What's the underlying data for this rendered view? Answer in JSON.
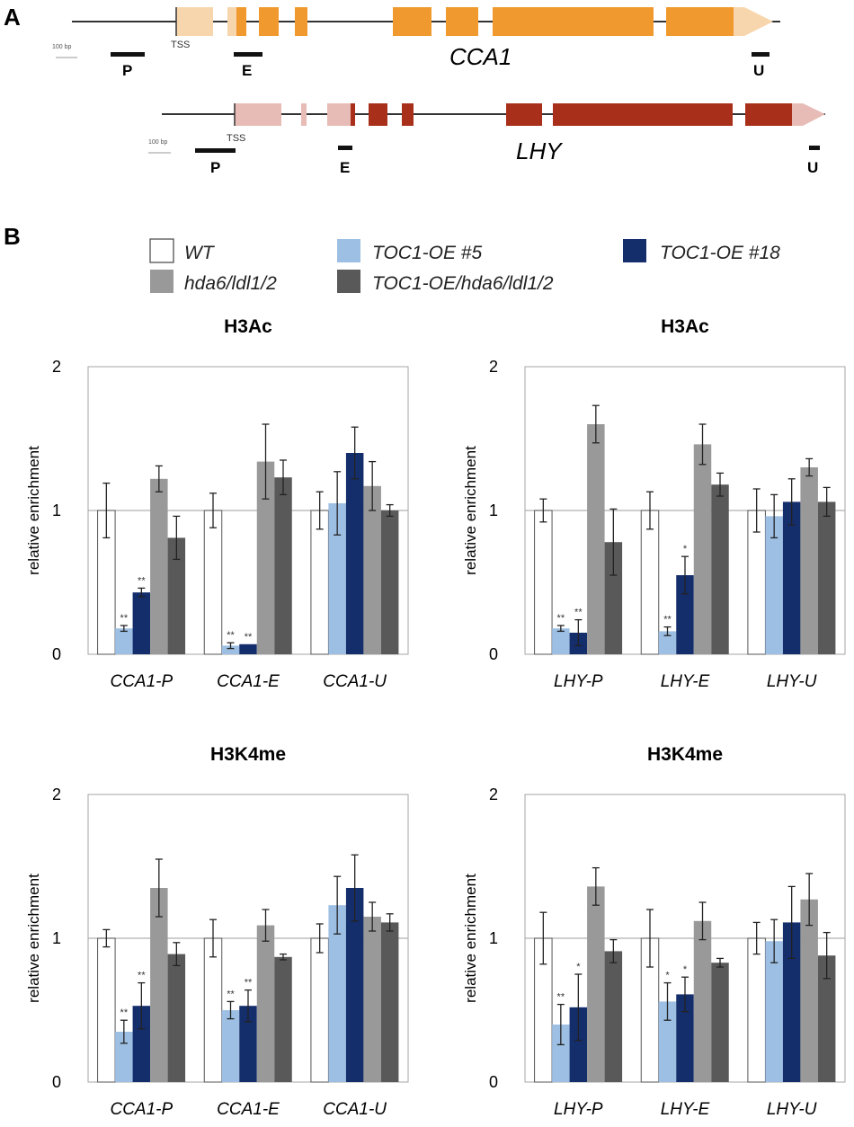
{
  "panel_a": {
    "letter": "A",
    "scale_label": "100 bp",
    "tss_label": "TSS",
    "genes": [
      {
        "name": "CCA1",
        "color": "#f0992e",
        "light_color": "#f8d6ad",
        "probes": [
          "P",
          "E",
          "U"
        ]
      },
      {
        "name": "LHY",
        "color": "#a8301b",
        "light_color": "#e8bcb6",
        "probes": [
          "P",
          "E",
          "U"
        ]
      }
    ]
  },
  "panel_b": {
    "letter": "B",
    "legend": [
      {
        "label": "WT",
        "color": "#ffffff"
      },
      {
        "label": "hda6/ldl1/2",
        "color": "#999999"
      },
      {
        "label": "TOC1-OE #5",
        "color": "#9dbfe3"
      },
      {
        "label": "TOC1-OE/hda6/ldl1/2",
        "color": "#595959"
      },
      {
        "label": "TOC1-OE #18",
        "color": "#142d6b"
      }
    ],
    "significance_marks": {
      "double": "**",
      "single": "*"
    }
  },
  "chart_data": [
    {
      "type": "bar",
      "title": "H3Ac",
      "ylabel": "relative enrichment",
      "ylim": [
        0,
        2
      ],
      "yticks": [
        "0",
        "1",
        "2"
      ],
      "categories": [
        "CCA1-P",
        "CCA1-E",
        "CCA1-U"
      ],
      "series": [
        {
          "name": "WT",
          "values": [
            1.0,
            1.0,
            1.0
          ],
          "errors": [
            0.19,
            0.12,
            0.13
          ]
        },
        {
          "name": "TOC1-OE #5",
          "values": [
            0.18,
            0.06,
            1.05
          ],
          "errors": [
            0.02,
            0.02,
            0.22
          ],
          "sig": [
            "**",
            "**",
            ""
          ]
        },
        {
          "name": "TOC1-OE #18",
          "values": [
            0.43,
            0.07,
            1.4
          ],
          "errors": [
            0.03,
            0.0,
            0.18
          ],
          "sig": [
            "**",
            "**",
            ""
          ]
        },
        {
          "name": "hda6/ldl1/2",
          "values": [
            1.22,
            1.34,
            1.17
          ],
          "errors": [
            0.09,
            0.26,
            0.17
          ]
        },
        {
          "name": "TOC1-OE/hda6/ldl1/2",
          "values": [
            0.81,
            1.23,
            1.0
          ],
          "errors": [
            0.15,
            0.12,
            0.04
          ]
        }
      ]
    },
    {
      "type": "bar",
      "title": "H3Ac",
      "ylabel": "relative enrichment",
      "ylim": [
        0,
        2
      ],
      "yticks": [
        "0",
        "1",
        "2"
      ],
      "categories": [
        "LHY-P",
        "LHY-E",
        "LHY-U"
      ],
      "series": [
        {
          "name": "WT",
          "values": [
            1.0,
            1.0,
            1.0
          ],
          "errors": [
            0.08,
            0.13,
            0.15
          ]
        },
        {
          "name": "TOC1-OE #5",
          "values": [
            0.18,
            0.16,
            0.96
          ],
          "errors": [
            0.02,
            0.03,
            0.15
          ],
          "sig": [
            "**",
            "**",
            ""
          ]
        },
        {
          "name": "TOC1-OE #18",
          "values": [
            0.15,
            0.55,
            1.06
          ],
          "errors": [
            0.09,
            0.13,
            0.16
          ],
          "sig": [
            "**",
            "*",
            ""
          ]
        },
        {
          "name": "hda6/ldl1/2",
          "values": [
            1.6,
            1.46,
            1.3
          ],
          "errors": [
            0.13,
            0.14,
            0.06
          ]
        },
        {
          "name": "TOC1-OE/hda6/ldl1/2",
          "values": [
            0.78,
            1.18,
            1.06
          ],
          "errors": [
            0.23,
            0.08,
            0.1
          ]
        }
      ]
    },
    {
      "type": "bar",
      "title": "H3K4me",
      "ylabel": "relative enrichment",
      "ylim": [
        0,
        2
      ],
      "yticks": [
        "0",
        "1",
        "2"
      ],
      "categories": [
        "CCA1-P",
        "CCA1-E",
        "CCA1-U"
      ],
      "series": [
        {
          "name": "WT",
          "values": [
            1.0,
            1.0,
            1.0
          ],
          "errors": [
            0.06,
            0.13,
            0.1
          ]
        },
        {
          "name": "TOC1-OE #5",
          "values": [
            0.35,
            0.5,
            1.23
          ],
          "errors": [
            0.08,
            0.06,
            0.2
          ],
          "sig": [
            "**",
            "**",
            ""
          ]
        },
        {
          "name": "TOC1-OE #18",
          "values": [
            0.53,
            0.53,
            1.35
          ],
          "errors": [
            0.16,
            0.11,
            0.23
          ],
          "sig": [
            "**",
            "**",
            ""
          ]
        },
        {
          "name": "hda6/ldl1/2",
          "values": [
            1.35,
            1.09,
            1.15
          ],
          "errors": [
            0.2,
            0.11,
            0.1
          ]
        },
        {
          "name": "TOC1-OE/hda6/ldl1/2",
          "values": [
            0.89,
            0.87,
            1.11
          ],
          "errors": [
            0.08,
            0.02,
            0.06
          ]
        }
      ]
    },
    {
      "type": "bar",
      "title": "H3K4me",
      "ylabel": "relative enrichment",
      "ylim": [
        0,
        2
      ],
      "yticks": [
        "0",
        "1",
        "2"
      ],
      "categories": [
        "LHY-P",
        "LHY-E",
        "LHY-U"
      ],
      "series": [
        {
          "name": "WT",
          "values": [
            1.0,
            1.0,
            1.0
          ],
          "errors": [
            0.18,
            0.2,
            0.11
          ]
        },
        {
          "name": "TOC1-OE #5",
          "values": [
            0.4,
            0.56,
            0.98
          ],
          "errors": [
            0.14,
            0.13,
            0.15
          ],
          "sig": [
            "**",
            "*",
            ""
          ]
        },
        {
          "name": "TOC1-OE #18",
          "values": [
            0.52,
            0.61,
            1.11
          ],
          "errors": [
            0.23,
            0.12,
            0.25
          ],
          "sig": [
            "*",
            "*",
            ""
          ]
        },
        {
          "name": "hda6/ldl1/2",
          "values": [
            1.36,
            1.12,
            1.27
          ],
          "errors": [
            0.13,
            0.13,
            0.18
          ]
        },
        {
          "name": "TOC1-OE/hda6/ldl1/2",
          "values": [
            0.91,
            0.83,
            0.88
          ],
          "errors": [
            0.08,
            0.03,
            0.16
          ]
        }
      ]
    }
  ]
}
